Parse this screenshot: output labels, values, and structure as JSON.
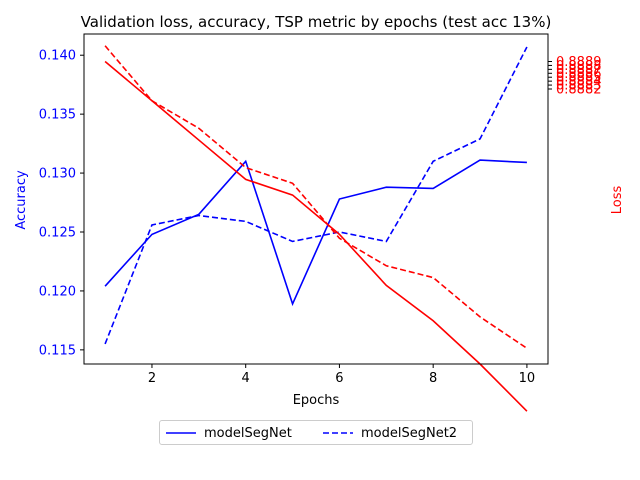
{
  "colors": {
    "accuracy": "#0000ff",
    "loss": "#ff0000",
    "axis": "#000000",
    "legend_border": "#cccccc"
  },
  "chart_data": {
    "type": "line",
    "title": "Validation loss, accuracy, TSP metric by epochs (test acc 13%)",
    "xlabel": "Epochs",
    "ylabel_left": "Accuracy",
    "ylabel_right": "Loss",
    "x": [
      1,
      2,
      3,
      4,
      5,
      6,
      7,
      8,
      9,
      10
    ],
    "xlim": [
      0.55,
      10.45
    ],
    "xticks": [
      2,
      4,
      6,
      8,
      10
    ],
    "ylim_left": [
      0.1138,
      0.1418
    ],
    "yticks_left": [
      "0.115",
      "0.120",
      "0.125",
      "0.130",
      "0.135",
      "0.140"
    ],
    "ylim_right": [
      0.08812,
      0.08896
    ],
    "yticks_right": [
      "0.8882",
      "0.8883",
      "0.8884",
      "0.8885",
      "0.8886",
      "0.8887",
      "0.8888",
      "0.8889"
    ],
    "grid": false,
    "legend_position": "bottom-center",
    "series": [
      {
        "name": "modelSegNet",
        "axis": "left",
        "style": "solid",
        "color": "#0000ff",
        "values": [
          0.1204,
          0.1248,
          0.1265,
          0.131,
          0.1189,
          0.1278,
          0.1288,
          0.1287,
          0.1311,
          0.1309
        ]
      },
      {
        "name": "modelSegNet2",
        "axis": "left",
        "style": "dashed",
        "color": "#0000ff",
        "values": [
          0.1155,
          0.1256,
          0.1264,
          0.1259,
          0.1242,
          0.125,
          0.1242,
          0.131,
          0.1329,
          0.1407
        ]
      },
      {
        "name": "",
        "axis": "right",
        "style": "solid",
        "color": "#ff0000",
        "values": [
          0.08889,
          0.08879,
          0.08869,
          0.08859,
          0.08855,
          0.08845,
          0.08832,
          0.08823,
          0.08812,
          0.088
        ]
      },
      {
        "name": "",
        "axis": "right",
        "style": "dashed",
        "color": "#ff0000",
        "values": [
          0.08893,
          0.08879,
          0.08872,
          0.08862,
          0.08858,
          0.08844,
          0.08837,
          0.08834,
          0.08824,
          0.08816
        ]
      }
    ]
  }
}
